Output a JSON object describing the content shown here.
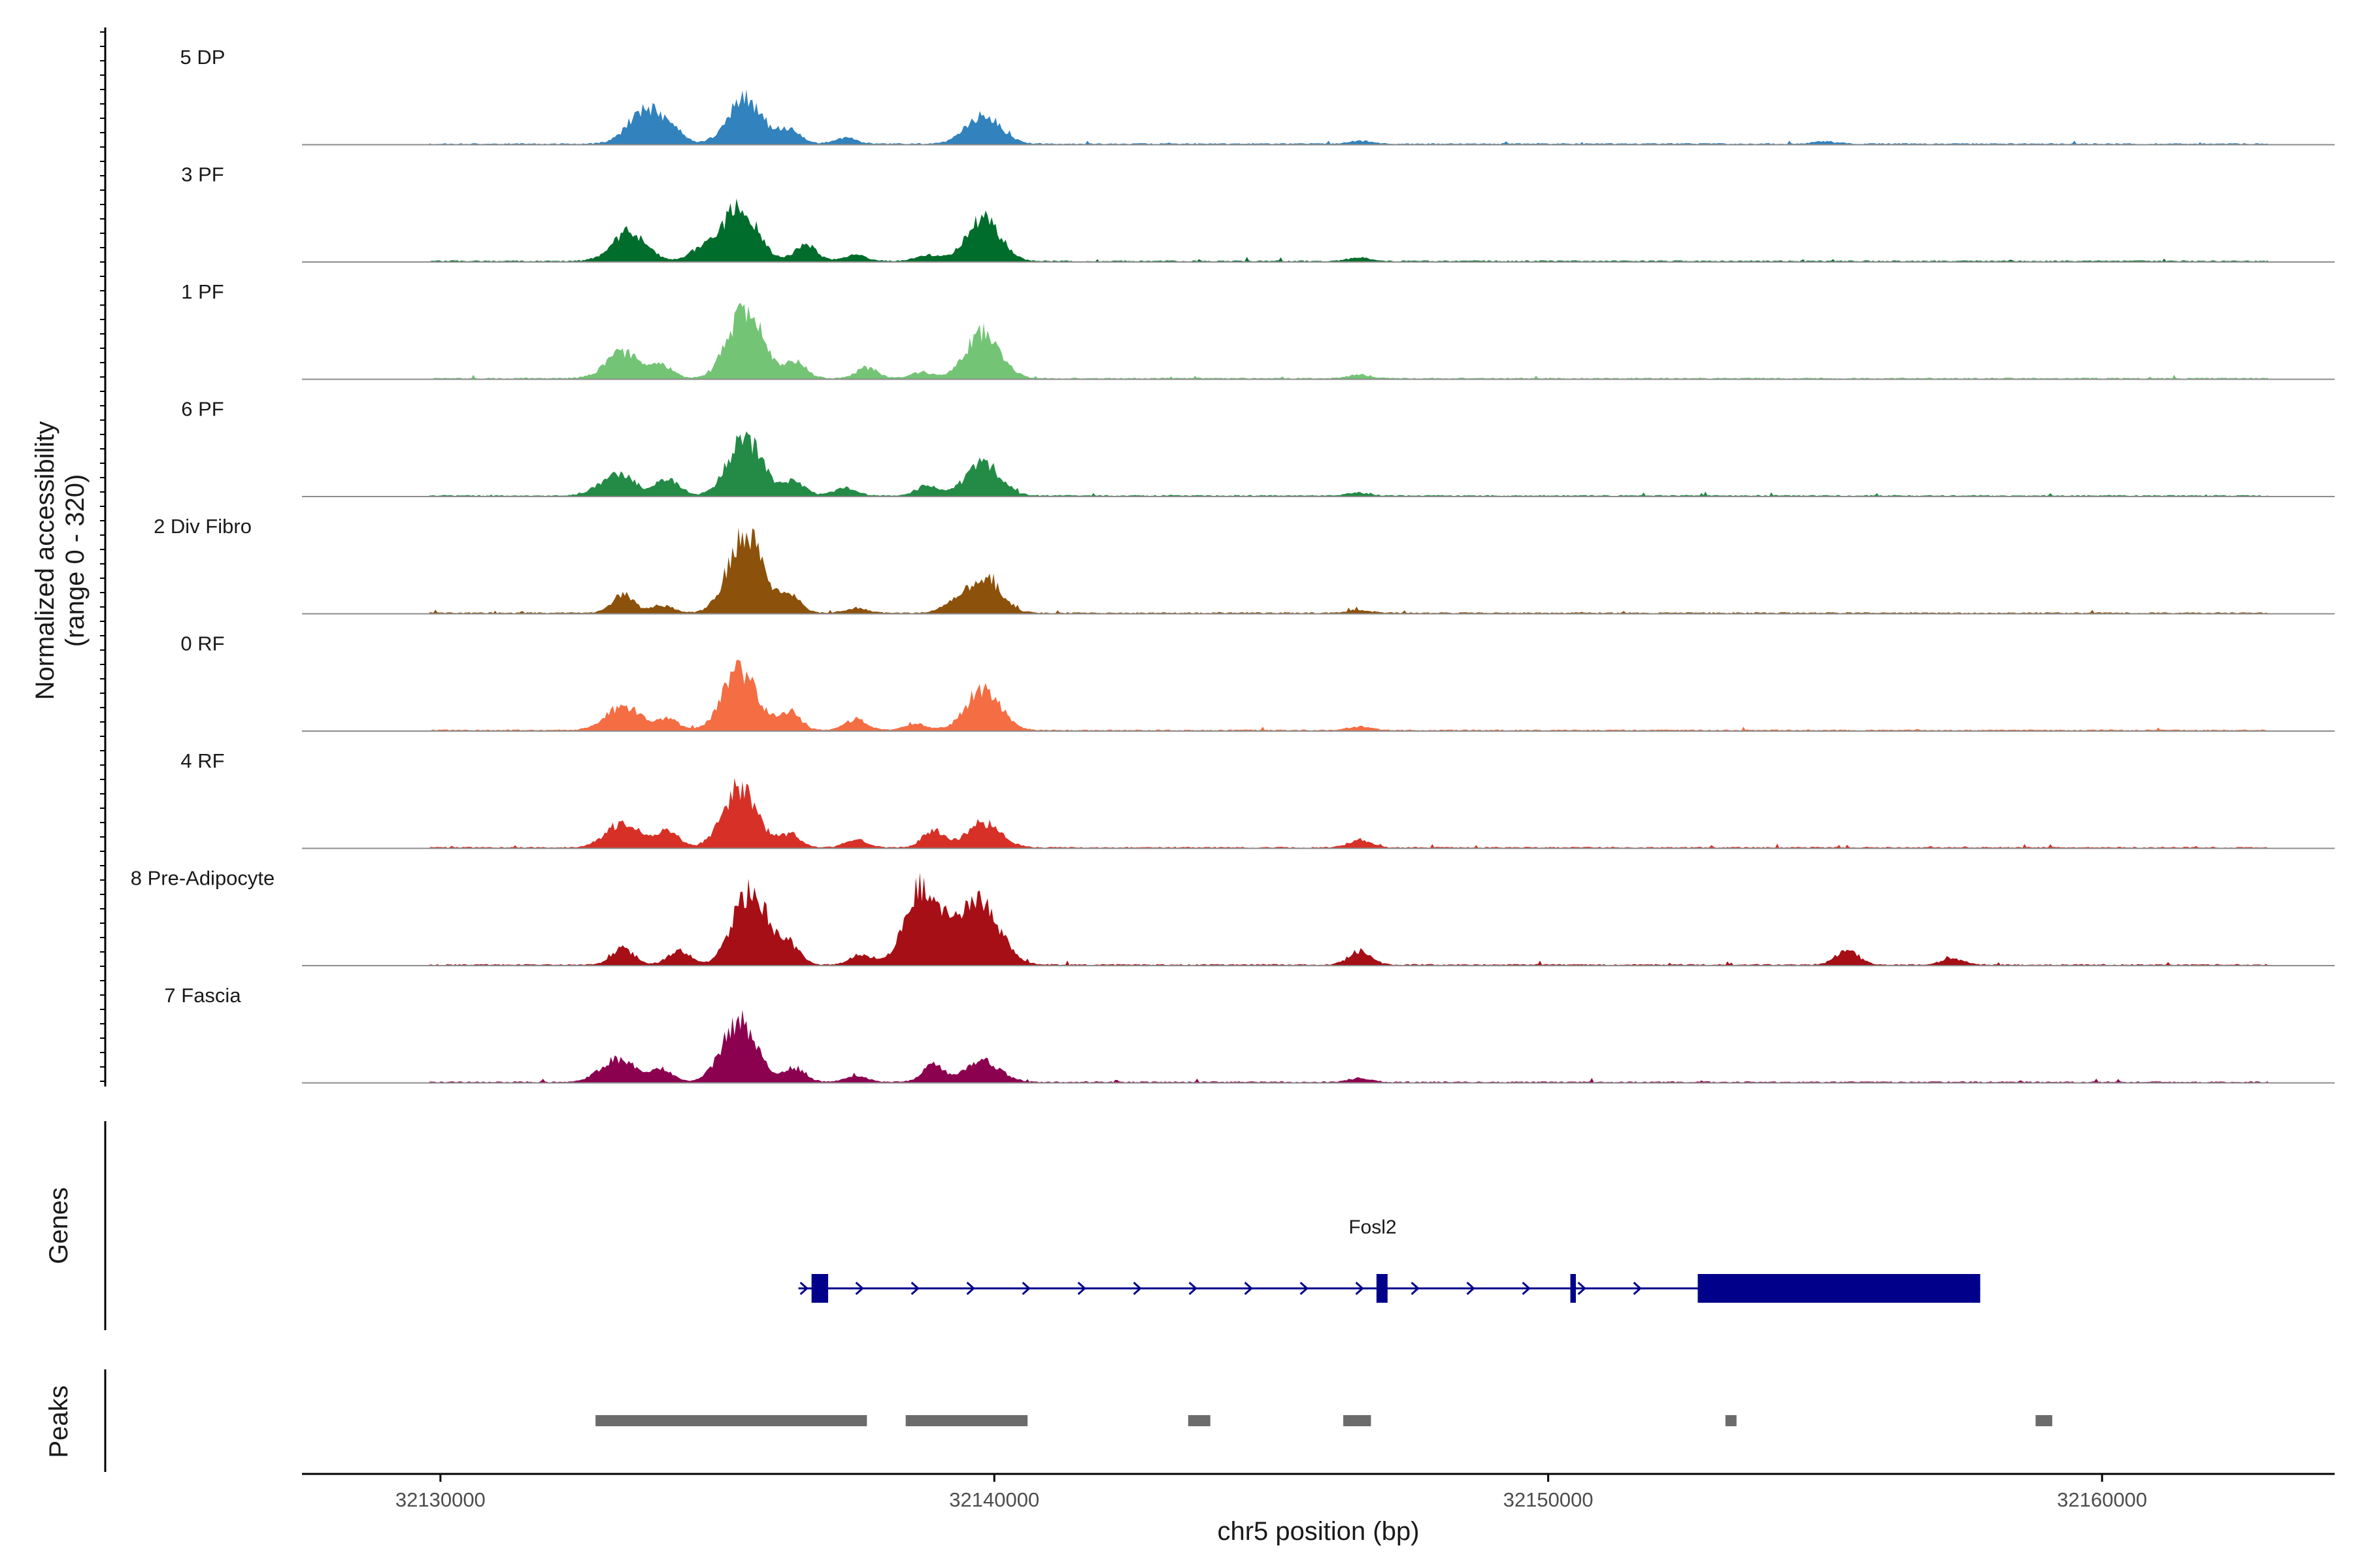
{
  "chart_data": {
    "type": "area",
    "title": "",
    "ylabel_line1": "Normalized accessibility",
    "ylabel_line2": "(range 0 - 320)",
    "y_range": [
      0,
      320
    ],
    "xlabel": "chr5 position (bp)",
    "xlim": [
      32127500,
      32164200
    ],
    "x_ticks": [
      32130000,
      32140000,
      32150000,
      32160000
    ],
    "x_tick_labels": [
      "32130000",
      "32140000",
      "32150000",
      "32160000"
    ],
    "tracks": [
      {
        "name": "5 DP",
        "color": "#3182bd",
        "coverage_start": 32129800,
        "coverage_end": 32163000,
        "peaks": [
          [
            32133700,
            115
          ],
          [
            32134200,
            35
          ],
          [
            32135500,
            150
          ],
          [
            32136300,
            45
          ],
          [
            32137300,
            20
          ],
          [
            32139800,
            95
          ],
          [
            32146600,
            10
          ],
          [
            32155000,
            8
          ]
        ]
      },
      {
        "name": "3 PF",
        "color": "#006d2c",
        "coverage_start": 32129800,
        "coverage_end": 32163000,
        "peaks": [
          [
            32133400,
            95
          ],
          [
            32134700,
            40
          ],
          [
            32135400,
            185
          ],
          [
            32136600,
            55
          ],
          [
            32137500,
            20
          ],
          [
            32138800,
            20
          ],
          [
            32139800,
            140
          ],
          [
            32146600,
            12
          ]
        ]
      },
      {
        "name": "1 PF",
        "color": "#74c476",
        "coverage_start": 32129800,
        "coverage_end": 32163000,
        "peaks": [
          [
            32133300,
            85
          ],
          [
            32134000,
            40
          ],
          [
            32135500,
            230
          ],
          [
            32136400,
            55
          ],
          [
            32137700,
            35
          ],
          [
            32138700,
            20
          ],
          [
            32139800,
            150
          ],
          [
            32146600,
            12
          ]
        ]
      },
      {
        "name": "6 PF",
        "color": "#238b45",
        "coverage_start": 32129800,
        "coverage_end": 32163000,
        "peaks": [
          [
            32133200,
            75
          ],
          [
            32134100,
            55
          ],
          [
            32135500,
            190
          ],
          [
            32136400,
            45
          ],
          [
            32137300,
            25
          ],
          [
            32138800,
            35
          ],
          [
            32139800,
            105
          ],
          [
            32146600,
            10
          ]
        ]
      },
      {
        "name": "2 Div Fibro",
        "color": "#8c510a",
        "coverage_start": 32129800,
        "coverage_end": 32163000,
        "peaks": [
          [
            32133300,
            60
          ],
          [
            32134000,
            25
          ],
          [
            32135500,
            260
          ],
          [
            32136300,
            55
          ],
          [
            32137500,
            15
          ],
          [
            32139200,
            20
          ],
          [
            32139800,
            120
          ],
          [
            32146600,
            10
          ]
        ]
      },
      {
        "name": "0 RF",
        "color": "#f46d43",
        "coverage_start": 32129800,
        "coverage_end": 32163000,
        "peaks": [
          [
            32133300,
            80
          ],
          [
            32134100,
            35
          ],
          [
            32135400,
            195
          ],
          [
            32136300,
            60
          ],
          [
            32137500,
            35
          ],
          [
            32138600,
            20
          ],
          [
            32139800,
            135
          ],
          [
            32146600,
            12
          ]
        ]
      },
      {
        "name": "4 RF",
        "color": "#d73027",
        "coverage_start": 32129800,
        "coverage_end": 32163000,
        "peaks": [
          [
            32133300,
            80
          ],
          [
            32134100,
            55
          ],
          [
            32135400,
            195
          ],
          [
            32136300,
            45
          ],
          [
            32137500,
            25
          ],
          [
            32138900,
            55
          ],
          [
            32139800,
            80
          ],
          [
            32146600,
            25
          ]
        ]
      },
      {
        "name": "8 Pre-Adipocyte",
        "color": "#a50f15",
        "coverage_start": 32129800,
        "coverage_end": 32163000,
        "peaks": [
          [
            32133300,
            55
          ],
          [
            32134300,
            45
          ],
          [
            32135600,
            250
          ],
          [
            32136300,
            60
          ],
          [
            32137600,
            35
          ],
          [
            32138700,
            260
          ],
          [
            32139500,
            130
          ],
          [
            32139900,
            125
          ],
          [
            32146600,
            45
          ],
          [
            32155400,
            50
          ],
          [
            32157300,
            20
          ]
        ]
      },
      {
        "name": "7 Fascia",
        "color": "#8c0050",
        "coverage_start": 32129800,
        "coverage_end": 32163000,
        "peaks": [
          [
            32133200,
            75
          ],
          [
            32134000,
            40
          ],
          [
            32135400,
            200
          ],
          [
            32136400,
            45
          ],
          [
            32137500,
            20
          ],
          [
            32138900,
            55
          ],
          [
            32139800,
            70
          ],
          [
            32146600,
            12
          ]
        ]
      }
    ],
    "genes_track_label": "Genes",
    "gene": {
      "name": "Fosl2",
      "color": "#00008b",
      "strand": "+",
      "start": 32136700,
      "end": 32157800,
      "exons": [
        [
          32136700,
          32137000
        ],
        [
          32146900,
          32147100
        ],
        [
          32150400,
          32150500
        ],
        [
          32152700,
          32157800
        ]
      ]
    },
    "peaks_track_label": "Peaks",
    "peaks_color": "#6b6b6b",
    "peak_regions": [
      [
        32132800,
        32137700
      ],
      [
        32138400,
        32140600
      ],
      [
        32143500,
        32143900
      ],
      [
        32146300,
        32146800
      ],
      [
        32153200,
        32153400
      ],
      [
        32158800,
        32159100
      ]
    ]
  }
}
